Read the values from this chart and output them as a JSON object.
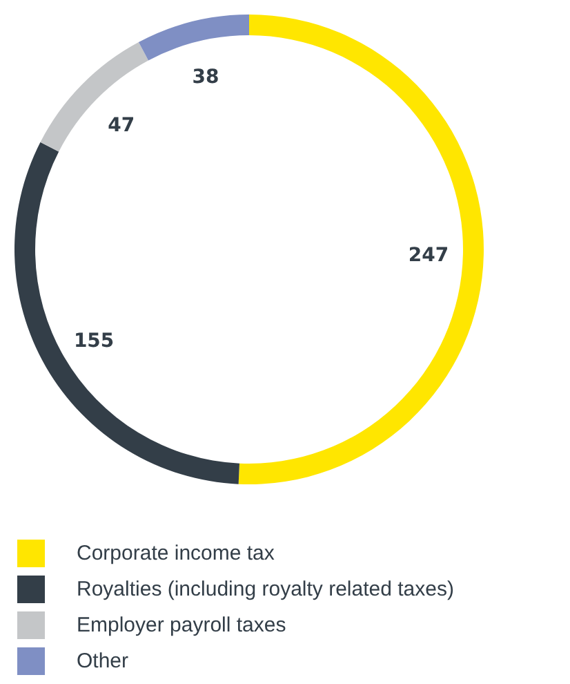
{
  "chart_data": {
    "type": "donut",
    "categories": [
      "Corporate income tax",
      "Royalties (including royalty related taxes)",
      "Employer payroll taxes",
      "Other"
    ],
    "values": [
      247,
      155,
      47,
      38
    ],
    "colors": [
      "#ffe600",
      "#333e48",
      "#c4c6c8",
      "#7f8fc4"
    ],
    "data_labels": true,
    "legend": "bottom"
  }
}
